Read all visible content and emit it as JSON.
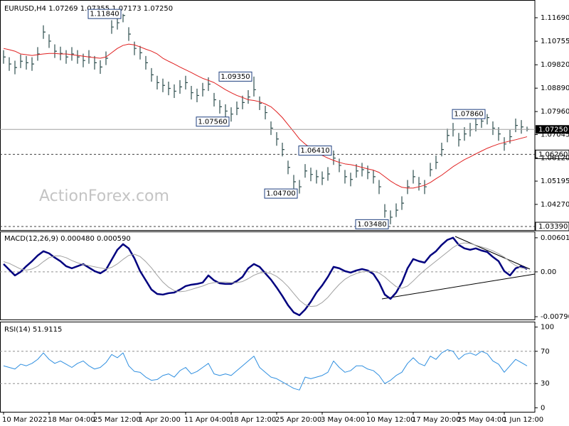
{
  "chart_data": [
    {
      "type": "ohlc",
      "title": "EURUSD,H4  1.07269 1.07355 1.07173 1.07250",
      "watermark": "ActionForex.com",
      "bar_color": "#2f4f4f",
      "categories": [
        "10 Mar 2022",
        null,
        null,
        null,
        null,
        null,
        null,
        null,
        "18 Mar 04:00",
        null,
        null,
        null,
        null,
        null,
        null,
        null,
        "25 Mar 12:00",
        null,
        null,
        null,
        null,
        null,
        null,
        null,
        "1 Apr 20:00",
        null,
        null,
        null,
        null,
        null,
        null,
        null,
        "11 Apr 04:00",
        null,
        null,
        null,
        null,
        null,
        null,
        null,
        "18 Apr 12:00",
        null,
        null,
        null,
        null,
        null,
        null,
        null,
        "25 Apr 20:00",
        null,
        null,
        null,
        null,
        null,
        null,
        null,
        "3 May 04:00",
        null,
        null,
        null,
        null,
        null,
        null,
        null,
        "10 May 12:00",
        null,
        null,
        null,
        null,
        null,
        null,
        null,
        "17 May 20:00",
        null,
        null,
        null,
        null,
        null,
        null,
        null,
        "25 May 04:00",
        null,
        null,
        null,
        null,
        null,
        null,
        null,
        "1 Jun 12:00",
        null,
        null,
        null,
        null
      ],
      "high": [
        1.104,
        1.1012,
        1.0998,
        1.1023,
        1.1017,
        1.1012,
        1.1052,
        1.1139,
        1.1103,
        1.1063,
        1.1054,
        1.104,
        1.1052,
        1.104,
        1.1026,
        1.104,
        1.1017,
        1.1,
        1.1035,
        1.1159,
        1.1176,
        1.1184,
        1.1131,
        1.1074,
        1.1057,
        1.1017,
        1.0969,
        1.0938,
        1.0927,
        1.0915,
        1.0904,
        1.0921,
        1.0938,
        1.0898,
        1.0887,
        1.091,
        1.0932,
        1.087,
        1.0842,
        1.0825,
        1.0813,
        1.0836,
        1.0859,
        1.0881,
        1.0935,
        1.0856,
        1.0819,
        1.0757,
        1.0714,
        1.0672,
        1.0601,
        1.0544,
        1.0524,
        1.0587,
        1.0573,
        1.0564,
        1.0558,
        1.0575,
        1.0641,
        1.0609,
        1.0564,
        1.0553,
        1.0587,
        1.0592,
        1.0581,
        1.0564,
        1.0524,
        1.0428,
        1.0403,
        1.0431,
        1.0459,
        1.0524,
        1.0564,
        1.0536,
        1.0524,
        1.0592,
        1.0621,
        1.0672,
        1.0728,
        1.0751,
        1.0711,
        1.0734,
        1.0751,
        1.0771,
        1.078,
        1.0786,
        1.0757,
        1.0734,
        1.0694,
        1.0723,
        1.0768,
        1.0762,
        1.0736
      ],
      "low": [
        1.0986,
        1.0958,
        1.0944,
        1.0969,
        1.0963,
        1.0958,
        1.0998,
        1.1085,
        1.1049,
        1.1009,
        1.1,
        1.0986,
        1.0998,
        1.0986,
        1.0972,
        1.0986,
        1.0963,
        1.0946,
        1.0981,
        1.1105,
        1.1122,
        1.1151,
        1.1077,
        1.102,
        1.1003,
        1.0963,
        1.0915,
        1.0884,
        1.0873,
        1.0861,
        1.085,
        1.0867,
        1.0884,
        1.0844,
        1.0833,
        1.0856,
        1.0878,
        1.0816,
        1.0788,
        1.0771,
        1.0756,
        1.0782,
        1.0805,
        1.0827,
        1.0856,
        1.0802,
        1.0765,
        1.0703,
        1.066,
        1.0618,
        1.0547,
        1.049,
        1.047,
        1.0533,
        1.0519,
        1.051,
        1.0504,
        1.0521,
        1.0584,
        1.0555,
        1.051,
        1.0499,
        1.0533,
        1.0538,
        1.0527,
        1.051,
        1.0468,
        1.0374,
        1.0348,
        1.0377,
        1.0405,
        1.0468,
        1.051,
        1.0482,
        1.0468,
        1.0538,
        1.0567,
        1.0618,
        1.0674,
        1.0697,
        1.0657,
        1.068,
        1.0697,
        1.0717,
        1.0731,
        1.0745,
        1.0703,
        1.068,
        1.064,
        1.0669,
        1.0714,
        1.0708,
        1.0717
      ],
      "close": [
        1.1013,
        1.0985,
        1.0971,
        1.0996,
        1.099,
        1.0985,
        1.1025,
        1.1112,
        1.1076,
        1.1036,
        1.1027,
        1.1013,
        1.1025,
        1.1013,
        1.0999,
        1.1013,
        1.099,
        1.0973,
        1.1008,
        1.1132,
        1.1149,
        1.1178,
        1.1104,
        1.1047,
        1.103,
        1.099,
        1.0942,
        1.0911,
        1.09,
        1.0888,
        1.0877,
        1.0894,
        1.0911,
        1.0871,
        1.086,
        1.0883,
        1.0905,
        1.0843,
        1.0815,
        1.0798,
        1.0786,
        1.0809,
        1.0832,
        1.0854,
        1.0883,
        1.0829,
        1.0792,
        1.073,
        1.0687,
        1.0645,
        1.0574,
        1.0517,
        1.0497,
        1.056,
        1.0546,
        1.0537,
        1.0531,
        1.0548,
        1.0611,
        1.0582,
        1.0537,
        1.0526,
        1.056,
        1.0565,
        1.0554,
        1.0537,
        1.0497,
        1.0401,
        1.0376,
        1.0404,
        1.0432,
        1.0497,
        1.0537,
        1.0509,
        1.0497,
        1.0565,
        1.0594,
        1.0645,
        1.0701,
        1.0724,
        1.0684,
        1.0707,
        1.0724,
        1.0744,
        1.0758,
        1.0772,
        1.073,
        1.0707,
        1.0667,
        1.0696,
        1.0741,
        1.0735,
        1.0725
      ],
      "series": [
        {
          "color": "#e02020",
          "values": [
            1.1047,
            1.1042,
            1.1036,
            1.1025,
            1.1022,
            1.1019,
            1.1022,
            1.1025,
            1.1027,
            1.1027,
            1.1025,
            1.1025,
            1.1022,
            1.1019,
            1.1016,
            1.1013,
            1.101,
            1.1008,
            1.1013,
            1.103,
            1.1047,
            1.1059,
            1.1064,
            1.1061,
            1.1053,
            1.1044,
            1.1036,
            1.1025,
            1.1008,
            1.0996,
            1.0985,
            1.0973,
            1.0962,
            1.0951,
            1.0939,
            1.0928,
            1.092,
            1.0911,
            1.0897,
            1.0883,
            1.0871,
            1.086,
            1.0852,
            1.0843,
            1.084,
            1.0835,
            1.0826,
            1.0815,
            1.0795,
            1.0772,
            1.0744,
            1.0716,
            1.0687,
            1.0667,
            1.065,
            1.0636,
            1.0622,
            1.0611,
            1.0602,
            1.0594,
            1.0588,
            1.0585,
            1.058,
            1.0574,
            1.0568,
            1.0563,
            1.0554,
            1.0537,
            1.052,
            1.0506,
            1.0495,
            1.0492,
            1.0492,
            1.0497,
            1.0503,
            1.0514,
            1.0529,
            1.0543,
            1.056,
            1.0577,
            1.0591,
            1.0605,
            1.0616,
            1.0628,
            1.0639,
            1.065,
            1.0659,
            1.0667,
            1.0673,
            1.0679,
            1.0684,
            1.069,
            1.0696
          ]
        }
      ],
      "annotations": [
        {
          "value": 1.1184,
          "label": "1.11840"
        },
        {
          "value": 1.0935,
          "label": "1.09350"
        },
        {
          "value": 1.0756,
          "label": "1.07560"
        },
        {
          "value": 1.0641,
          "label": "1.06410"
        },
        {
          "value": 1.047,
          "label": "1.04700"
        },
        {
          "value": 1.0348,
          "label": "1.03480"
        },
        {
          "value": 1.0786,
          "label": "1.07860"
        }
      ],
      "levels": [
        {
          "value": 1.0626,
          "label": "1.06260"
        },
        {
          "value": 1.0339,
          "label": "1.03390"
        }
      ],
      "last_price": {
        "value": 1.0725,
        "label": "1.07250"
      },
      "ylim": [
        1.0325,
        1.1231
      ],
      "yticks": [
        {
          "value": 1.1169,
          "label": "1.11690"
        },
        {
          "value": 1.10755,
          "label": "1.10755"
        },
        {
          "value": 1.0982,
          "label": "1.09820"
        },
        {
          "value": 1.0889,
          "label": "1.08890"
        },
        {
          "value": 1.0796,
          "label": "1.07960"
        },
        {
          "value": 1.07045,
          "label": "1.07045"
        },
        {
          "value": 1.0612,
          "label": "1.06120"
        },
        {
          "value": 1.05195,
          "label": "1.05195"
        },
        {
          "value": 1.0427,
          "label": "1.04270"
        }
      ]
    },
    {
      "type": "line",
      "title": "MACD(12,26,9) 0.000480 0.000590",
      "series": [
        {
          "color": "#00007f",
          "width": 2.5,
          "values": [
            0.00138,
            0.00038,
            -0.00063,
            0,
            0.001,
            0.00188,
            0.00288,
            0.00364,
            0.00326,
            0.00251,
            0.00188,
            0.001,
            0.00063,
            0.001,
            0.00138,
            0.00075,
            0.00013,
            -0.00025,
            0.00038,
            0.00213,
            0.00389,
            0.00489,
            0.00414,
            0.00238,
            0.00013,
            -0.0015,
            -0.00313,
            -0.00389,
            -0.00401,
            -0.00376,
            -0.00364,
            -0.00313,
            -0.00251,
            -0.00226,
            -0.00213,
            -0.00188,
            -0.00063,
            -0.0015,
            -0.00201,
            -0.00213,
            -0.00213,
            -0.00163,
            -0.00088,
            0.00063,
            0.00138,
            0.00088,
            -0.00025,
            -0.00138,
            -0.00276,
            -0.00426,
            -0.00589,
            -0.00715,
            -0.00765,
            -0.00665,
            -0.00527,
            -0.00364,
            -0.00238,
            -0.00088,
            0.00088,
            0.00063,
            0.00013,
            -0.00013,
            0.00025,
            0.0005,
            0.00025,
            -0.00038,
            -0.00188,
            -0.00401,
            -0.00476,
            -0.00364,
            -0.00188,
            0.00063,
            0.00226,
            0.00188,
            0.00163,
            0.00288,
            0.00364,
            0.00476,
            0.00564,
            0.00602,
            0.00476,
            0.00414,
            0.00389,
            0.00414,
            0.00376,
            0.00351,
            0.00263,
            0.00188,
            0.00013,
            -0.00063,
            0.00063,
            0.001,
            0.00048
          ]
        },
        {
          "color": "#a0a0a0",
          "width": 1,
          "values": [
            0.0018,
            0.0015,
            0.001,
            0.0005,
            0.0003,
            0.0005,
            0.001,
            0.0018,
            0.0025,
            0.0028,
            0.0028,
            0.0025,
            0.002,
            0.0016,
            0.0013,
            0.0011,
            0.0009,
            0.0007,
            0.0005,
            0.0008,
            0.0014,
            0.0022,
            0.0029,
            0.0031,
            0.0027,
            0.0018,
            0.0007,
            -0.0006,
            -0.0018,
            -0.0027,
            -0.0033,
            -0.0035,
            -0.0034,
            -0.0031,
            -0.0028,
            -0.0025,
            -0.0021,
            -0.0019,
            -0.0018,
            -0.0018,
            -0.0019,
            -0.0019,
            -0.0017,
            -0.0012,
            -0.0006,
            -0.0002,
            -0.0001,
            -0.0003,
            -0.0008,
            -0.0016,
            -0.0026,
            -0.0038,
            -0.005,
            -0.0058,
            -0.0061,
            -0.006,
            -0.0054,
            -0.0045,
            -0.0033,
            -0.0022,
            -0.0013,
            -0.0007,
            -0.0003,
            0.0,
            0.0001,
            0.0001,
            -0.0002,
            -0.0009,
            -0.0018,
            -0.0026,
            -0.0029,
            -0.0025,
            -0.0016,
            -0.0006,
            0.0003,
            0.0011,
            0.0019,
            0.0027,
            0.0035,
            0.0043,
            0.0049,
            0.0051,
            0.005,
            0.0047,
            0.0044,
            0.0041,
            0.0037,
            0.0032,
            0.0026,
            0.0018,
            0.0011,
            0.0007,
            0.00059
          ]
        }
      ],
      "dashed_levels": [
        0
      ],
      "ylim": [
        -0.0084,
        0.007
      ],
      "yticks": [
        0.006012,
        {
          "value": 0,
          "label": "0.00"
        },
        -0.007907
      ]
    },
    {
      "type": "line",
      "title": "RSI(14) 51.9115",
      "series": [
        {
          "color": "#2f8fe0",
          "width": 1,
          "values": [
            52,
            50,
            48,
            54,
            52,
            55,
            60,
            68,
            60,
            55,
            58,
            54,
            50,
            55,
            58,
            52,
            48,
            50,
            56,
            66,
            62,
            68,
            52,
            45,
            44,
            38,
            34,
            35,
            40,
            42,
            38,
            46,
            50,
            42,
            45,
            50,
            55,
            42,
            40,
            42,
            40,
            46,
            52,
            58,
            64,
            50,
            44,
            38,
            36,
            32,
            28,
            24,
            22,
            38,
            36,
            38,
            40,
            44,
            58,
            50,
            44,
            46,
            52,
            52,
            48,
            46,
            40,
            30,
            34,
            40,
            44,
            55,
            62,
            55,
            52,
            64,
            60,
            68,
            72,
            70,
            60,
            66,
            68,
            65,
            70,
            67,
            58,
            54,
            44,
            52,
            60,
            56,
            51.9115
          ]
        }
      ],
      "dashed_levels": [
        70,
        30
      ],
      "ylim": [
        -5,
        105
      ],
      "yticks": [
        100,
        70,
        30,
        0
      ]
    }
  ]
}
